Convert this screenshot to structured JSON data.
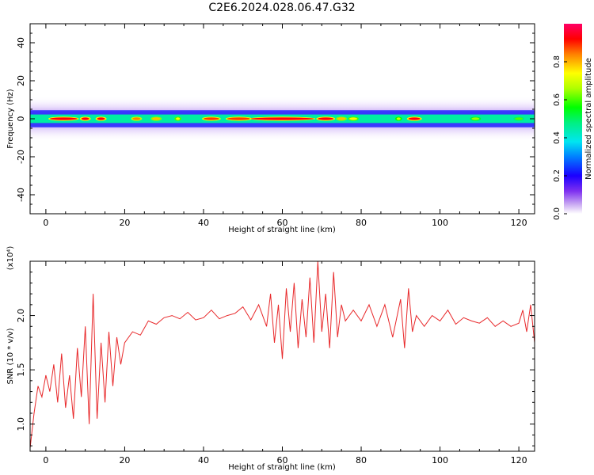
{
  "title": "C2E6.2024.028.06.47.G32",
  "chart_data": [
    {
      "type": "heatmap",
      "xlabel": "Height of straight line (km)",
      "ylabel": "Frequency (Hz)",
      "xlim": [
        -4,
        124
      ],
      "ylim": [
        -50,
        50
      ],
      "xticks": [
        0,
        20,
        40,
        60,
        80,
        100,
        120
      ],
      "yticks": [
        -40,
        -20,
        0,
        20,
        40
      ],
      "colorbar": {
        "label": "Normalized spectral amplitude",
        "range": [
          0,
          1
        ],
        "ticks": [
          0.0,
          0.2,
          0.4,
          0.6,
          0.8
        ]
      },
      "band": {
        "center_hz": 0,
        "approx_halfwidth_hz": 5,
        "peaks": [
          {
            "x_start": 1,
            "x_end": 8,
            "amplitude": 1.0
          },
          {
            "x_start": 9,
            "x_end": 11,
            "amplitude": 1.0
          },
          {
            "x_start": 13,
            "x_end": 15,
            "amplitude": 1.0
          },
          {
            "x_start": 22,
            "x_end": 24,
            "amplitude": 0.9
          },
          {
            "x_start": 27,
            "x_end": 29,
            "amplitude": 0.85
          },
          {
            "x_start": 33,
            "x_end": 34,
            "amplitude": 0.8
          },
          {
            "x_start": 40,
            "x_end": 44,
            "amplitude": 0.95
          },
          {
            "x_start": 46,
            "x_end": 52,
            "amplitude": 0.95
          },
          {
            "x_start": 52,
            "x_end": 68,
            "amplitude": 1.0
          },
          {
            "x_start": 69,
            "x_end": 73,
            "amplitude": 1.0
          },
          {
            "x_start": 74,
            "x_end": 76,
            "amplitude": 0.85
          },
          {
            "x_start": 77,
            "x_end": 79,
            "amplitude": 0.8
          },
          {
            "x_start": 89,
            "x_end": 90,
            "amplitude": 0.75
          },
          {
            "x_start": 92,
            "x_end": 95,
            "amplitude": 1.0
          },
          {
            "x_start": 108,
            "x_end": 110,
            "amplitude": 0.7
          },
          {
            "x_start": 119,
            "x_end": 121,
            "amplitude": 0.65
          }
        ]
      }
    },
    {
      "type": "line",
      "xlabel": "Height of straight line (km)",
      "ylabel": "SNR (10 * v/v)",
      "yscale_label": "(x10⁴)",
      "xlim": [
        -4,
        124
      ],
      "ylim": [
        0.75,
        2.5
      ],
      "xticks": [
        0,
        20,
        40,
        60,
        80,
        100,
        120
      ],
      "yticks": [
        1.0,
        1.5,
        2.0
      ],
      "ytick_labels": [
        "1.0",
        "1.5",
        "2.0"
      ],
      "series": [
        {
          "color": "#e8282a",
          "x": [
            -4,
            -3,
            -2,
            -1,
            0,
            1,
            2,
            3,
            4,
            5,
            6,
            7,
            8,
            9,
            10,
            11,
            12,
            13,
            14,
            15,
            16,
            17,
            18,
            19,
            20,
            22,
            24,
            26,
            28,
            30,
            32,
            34,
            36,
            38,
            40,
            42,
            44,
            46,
            48,
            50,
            52,
            54,
            56,
            57,
            58,
            59,
            60,
            61,
            62,
            63,
            64,
            65,
            66,
            67,
            68,
            69,
            70,
            71,
            72,
            73,
            74,
            75,
            76,
            78,
            80,
            82,
            84,
            86,
            88,
            90,
            91,
            92,
            93,
            94,
            96,
            98,
            100,
            102,
            104,
            106,
            108,
            110,
            112,
            114,
            116,
            118,
            120,
            121,
            122,
            123,
            124
          ],
          "y": [
            0.78,
            1.1,
            1.35,
            1.25,
            1.45,
            1.3,
            1.55,
            1.2,
            1.65,
            1.15,
            1.45,
            1.05,
            1.7,
            1.25,
            1.9,
            1.0,
            2.2,
            1.05,
            1.75,
            1.2,
            1.85,
            1.35,
            1.8,
            1.55,
            1.75,
            1.85,
            1.82,
            1.95,
            1.92,
            1.98,
            2.0,
            1.97,
            2.03,
            1.96,
            1.98,
            2.05,
            1.97,
            2.0,
            2.02,
            2.08,
            1.96,
            2.1,
            1.9,
            2.2,
            1.75,
            2.1,
            1.6,
            2.25,
            1.85,
            2.3,
            1.7,
            2.15,
            1.8,
            2.35,
            1.75,
            2.5,
            1.85,
            2.2,
            1.7,
            2.4,
            1.8,
            2.1,
            1.95,
            2.05,
            1.95,
            2.1,
            1.9,
            2.1,
            1.8,
            2.15,
            1.7,
            2.25,
            1.85,
            2.0,
            1.9,
            2.0,
            1.95,
            2.05,
            1.92,
            1.98,
            1.95,
            1.93,
            1.98,
            1.9,
            1.95,
            1.9,
            1.93,
            2.05,
            1.85,
            2.1,
            1.75
          ]
        }
      ]
    }
  ]
}
